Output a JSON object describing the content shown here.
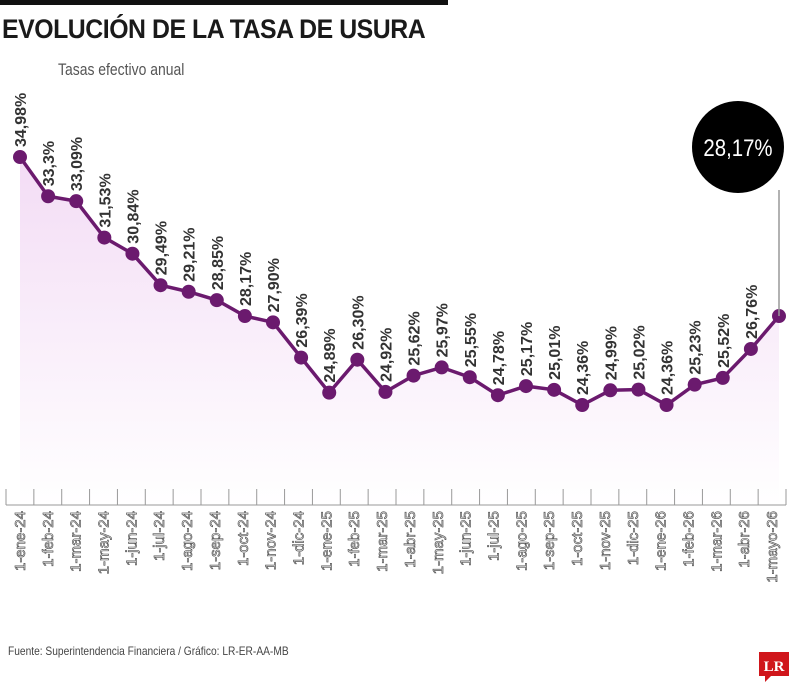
{
  "header": {
    "title": "EVOLUCIÓN DE LA TASA DE USURA",
    "subtitle": "Tasas efectivo anual"
  },
  "footer": {
    "source": "Fuente: Superintendencia Financiera / Gráfico: LR-ER-AA-MB",
    "logo": "LR"
  },
  "highlight": {
    "label": "28,17%"
  },
  "colors": {
    "line": "#6b1a6e",
    "fill": "#f6e6f8",
    "badge": "#000000",
    "icon": "#d7a6dc",
    "logo": "#d0161b"
  },
  "decoration": {
    "icon": "percent-badge-icon"
  },
  "chart_data": {
    "type": "line",
    "title": "EVOLUCIÓN DE LA TASA DE USURA",
    "subtitle": "Tasas efectivo anual",
    "xlabel": "",
    "ylabel": "",
    "grid": false,
    "categories": [
      "1-ene-24",
      "1-feb-24",
      "1-mar-24",
      "1-may-24",
      "1-jun-24",
      "1-jul-24",
      "1-ago-24",
      "1-sep-24",
      "1-oct-24",
      "1-nov-24",
      "1-dic-24",
      "1-ene-25",
      "1-feb-25",
      "1-mar-25",
      "1-abr-25",
      "1-may-25",
      "1-jun-25",
      "1-jul-25",
      "1-ago-25",
      "1-sep-25",
      "1-oct-25",
      "1-nov-25",
      "1-dic-25",
      "1-ene-26",
      "1-feb-26",
      "1-mar-26",
      "1-abr-26",
      "1-mayo-26"
    ],
    "values": [
      34.98,
      33.3,
      33.09,
      31.53,
      30.84,
      29.49,
      29.21,
      28.85,
      28.17,
      27.9,
      26.39,
      24.89,
      26.3,
      24.92,
      25.62,
      25.97,
      25.55,
      24.78,
      25.17,
      25.01,
      24.36,
      24.99,
      25.02,
      24.36,
      25.23,
      25.52,
      26.76,
      28.17
    ],
    "labels": [
      "34,98%",
      "33,3%",
      "33,09%",
      "31,53%",
      "30,84%",
      "29,49%",
      "29,21%",
      "28,85%",
      "28,17%",
      "27,90%",
      "26,39%",
      "24,89%",
      "26,30%",
      "24,92%",
      "25,62%",
      "25,97%",
      "25,55%",
      "24,78%",
      "25,17%",
      "25,01%",
      "24,36%",
      "24,99%",
      "25,02%",
      "24,36%",
      "25,23%",
      "25,52%",
      "26,76%",
      ""
    ]
  }
}
